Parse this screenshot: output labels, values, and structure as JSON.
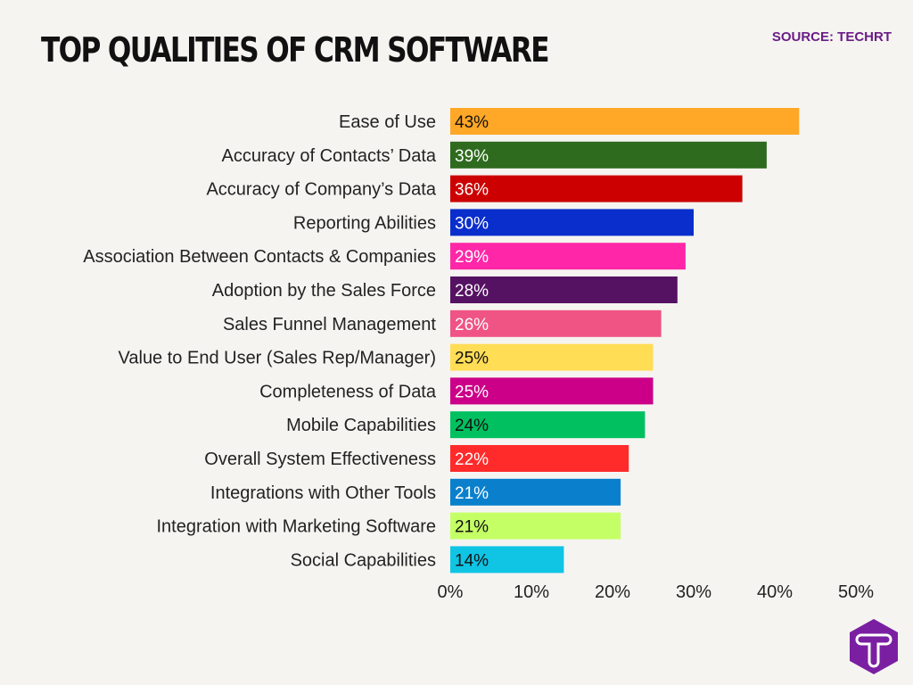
{
  "chart_data": {
    "type": "bar",
    "orientation": "horizontal",
    "title": "TOP QUALITIES OF CRM SOFTWARE",
    "source": "SOURCE: TECHRT",
    "categories": [
      "Ease of Use",
      "Accuracy of Contacts’ Data",
      "Accuracy of Company’s Data",
      "Reporting Abilities",
      "Association Between Contacts & Companies",
      "Adoption by the Sales Force",
      "Sales Funnel Management",
      "Value to End User (Sales Rep/Manager)",
      "Completeness of Data",
      "Mobile Capabilities",
      "Overall System Effectiveness",
      "Integrations with Other Tools",
      "Integration with Marketing Software",
      "Social Capabilities"
    ],
    "values": [
      43,
      39,
      36,
      30,
      29,
      28,
      26,
      25,
      25,
      24,
      22,
      21,
      21,
      14
    ],
    "data_labels": [
      "43%",
      "39%",
      "36%",
      "30%",
      "29%",
      "28%",
      "26%",
      "25%",
      "25%",
      "24%",
      "22%",
      "21%",
      "21%",
      "14%"
    ],
    "colors": [
      "#ffa726",
      "#2e6b1e",
      "#cc0000",
      "#0a2ecc",
      "#ff27a8",
      "#561262",
      "#ef5484",
      "#ffdd55",
      "#cc0088",
      "#00c060",
      "#ff2a2a",
      "#0a80cc",
      "#c5ff66",
      "#10c4e4"
    ],
    "label_colors": [
      "#111",
      "#fff",
      "#fff",
      "#fff",
      "#fff",
      "#fff",
      "#fff",
      "#111",
      "#fff",
      "#111",
      "#fff",
      "#fff",
      "#111",
      "#111"
    ],
    "xlim": [
      0,
      50
    ],
    "x_ticks": [
      "0%",
      "10%",
      "20%",
      "30%",
      "40%",
      "50%"
    ],
    "grid": false,
    "legend": "none"
  }
}
